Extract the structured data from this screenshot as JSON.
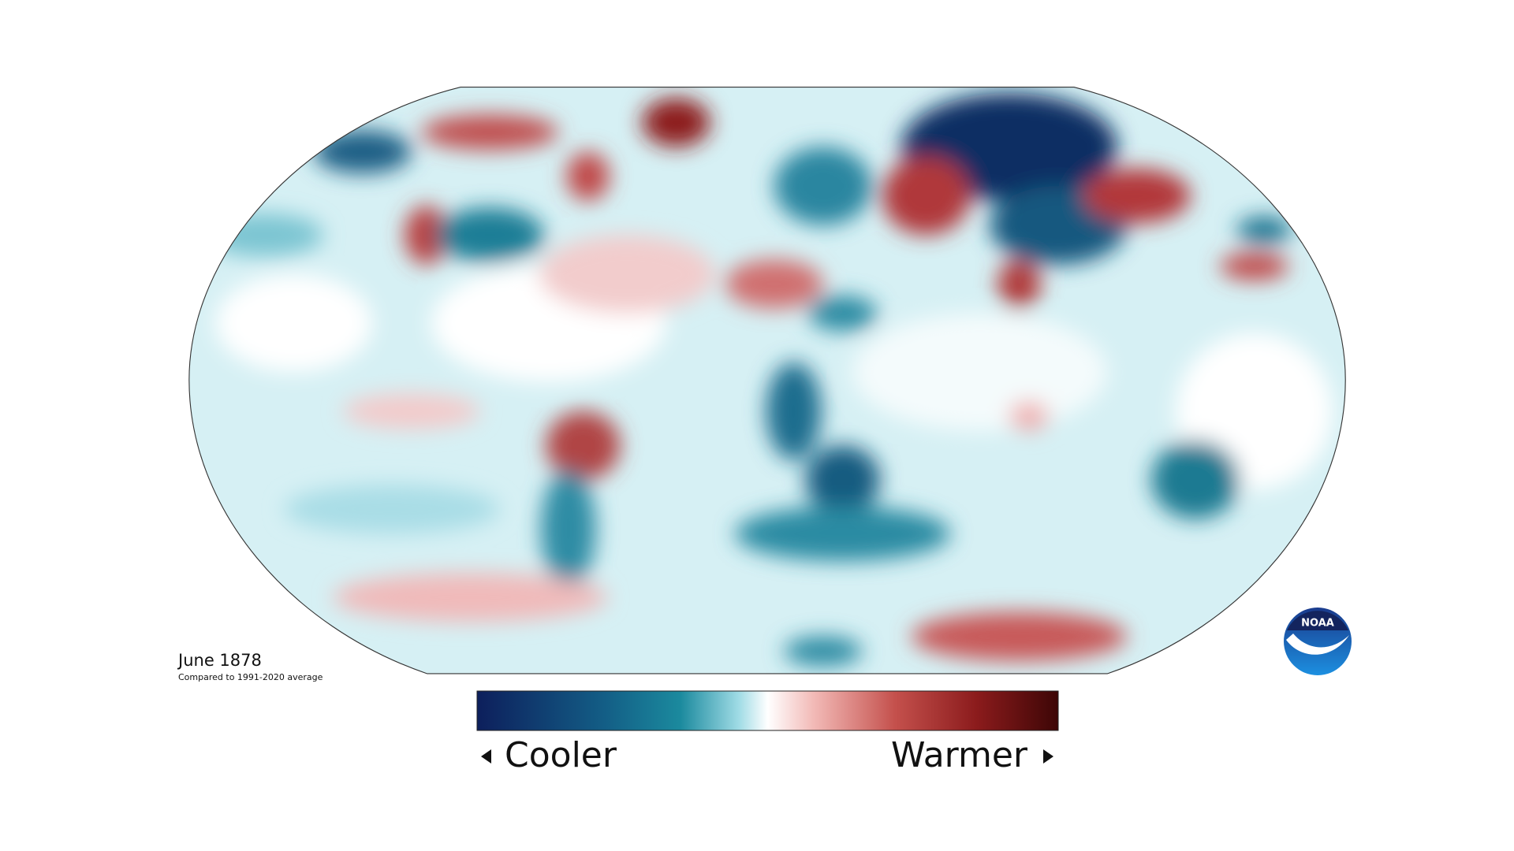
{
  "map": {
    "date": "June 1878",
    "subtitle": "Compared to 1991-2020 average"
  },
  "legend": {
    "cool_label": "Cooler",
    "warm_label": "Warmer"
  },
  "logo": {
    "text": "NOAA"
  }
}
